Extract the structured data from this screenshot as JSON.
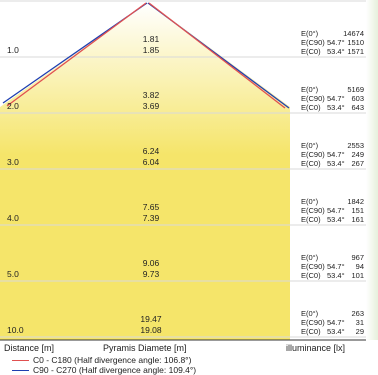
{
  "colors": {
    "cone_fill": "#f5e56a",
    "cone_fill_top": "#ffffff",
    "c0_line": "#e05050",
    "c90_line": "#1f3fb0",
    "grid": "#d9d9d9",
    "divider": "#333333",
    "deco_green": "#e6f0dc"
  },
  "rows": [
    {
      "distance": "1.0",
      "d_c0": "1.81",
      "d_c90": "1.85",
      "e0_label": "E(0°)",
      "e0": "14674",
      "ec90_label": "E(C90)",
      "ec90_angle": "54.7°",
      "ec90": "1510",
      "ec0_label": "E(C0)",
      "ec0_angle": "53.4°",
      "ec0": "1571"
    },
    {
      "distance": "2.0",
      "d_c0": "3.82",
      "d_c90": "3.69",
      "e0_label": "E(0°)",
      "e0": "5169",
      "ec90_label": "E(C90)",
      "ec90_angle": "54.7°",
      "ec90": "603",
      "ec0_label": "E(C0)",
      "ec0_angle": "53.4°",
      "ec0": "643"
    },
    {
      "distance": "3.0",
      "d_c0": "6.24",
      "d_c90": "6.04",
      "e0_label": "E(0°)",
      "e0": "2553",
      "ec90_label": "E(C90)",
      "ec90_angle": "54.7°",
      "ec90": "249",
      "ec0_label": "E(C0)",
      "ec0_angle": "53.4°",
      "ec0": "267"
    },
    {
      "distance": "4.0",
      "d_c0": "7.65",
      "d_c90": "7.39",
      "e0_label": "E(0°)",
      "e0": "1842",
      "ec90_label": "E(C90)",
      "ec90_angle": "54.7°",
      "ec90": "151",
      "ec0_label": "E(C0)",
      "ec0_angle": "53.4°",
      "ec0": "161"
    },
    {
      "distance": "5.0",
      "d_c0": "9.06",
      "d_c90": "9.73",
      "e0_label": "E(0°)",
      "e0": "967",
      "ec90_label": "E(C90)",
      "ec90_angle": "54.7°",
      "ec90": "94",
      "ec0_label": "E(C0)",
      "ec0_angle": "53.4°",
      "ec0": "101"
    },
    {
      "distance": "10.0",
      "d_c0": "19.47",
      "d_c90": "19.08",
      "e0_label": "E(0°)",
      "e0": "263",
      "ec90_label": "E(C90)",
      "ec90_angle": "54.7°",
      "ec90": "31",
      "ec0_label": "E(C0)",
      "ec0_angle": "53.4°",
      "ec0": "29"
    }
  ],
  "footer": {
    "distance_label": "Distance [m]",
    "diameter_label": "Pyramis Diamete  [m]",
    "illuminance_label": "illuminance [lx]"
  },
  "legend": [
    {
      "name": "C0 - C180",
      "note": "(Half divergence angle: 106.8°)",
      "color": "#e05050"
    },
    {
      "name": "C90 - C270",
      "note": "(Half divergence angle: 109.4°)",
      "color": "#1f3fb0"
    }
  ]
}
